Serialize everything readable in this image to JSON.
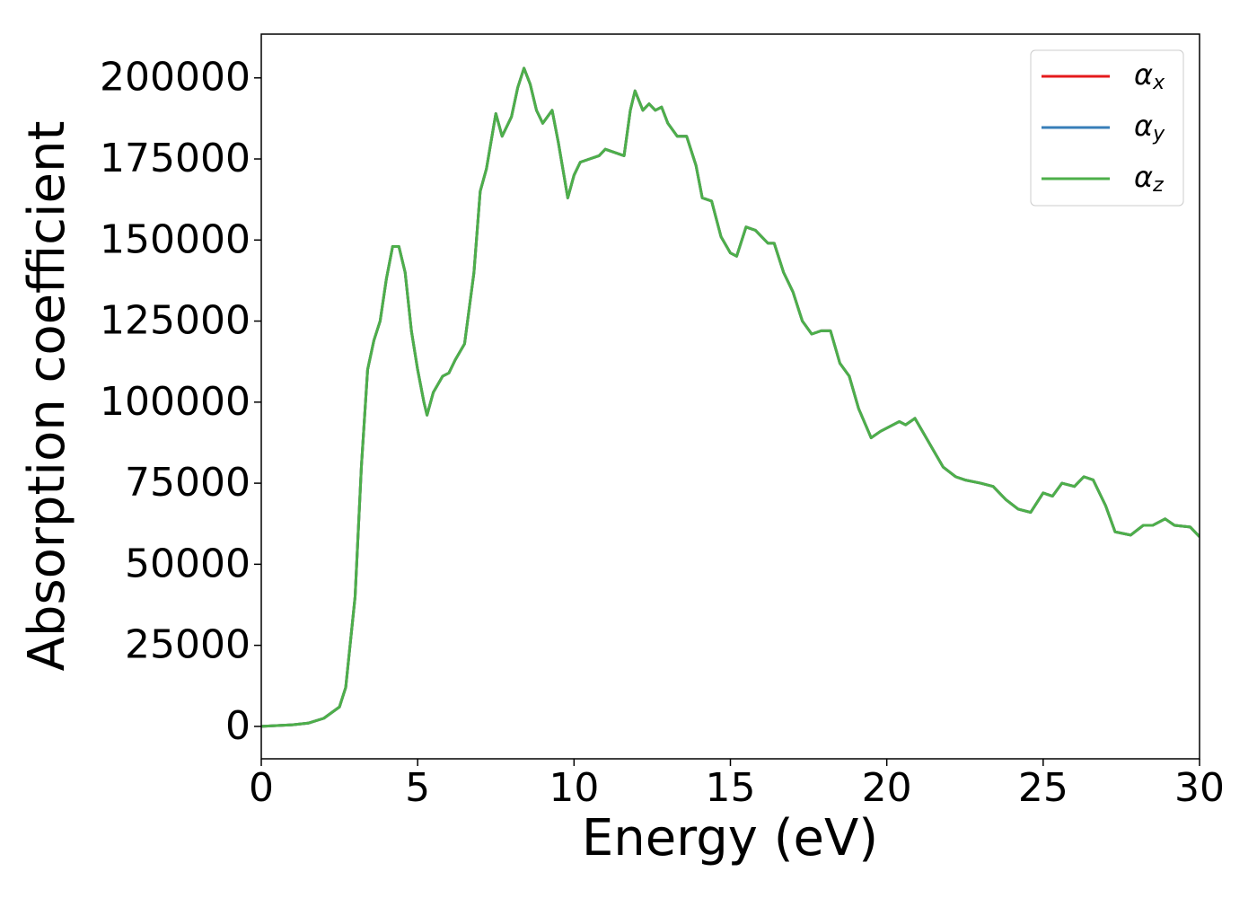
{
  "chart_data": {
    "type": "line",
    "xlabel": "Energy (eV)",
    "ylabel": "Absorption coefficient",
    "x": [
      0,
      1,
      1.5,
      2,
      2.5,
      2.7,
      3.0,
      3.2,
      3.4,
      3.6,
      3.8,
      4.0,
      4.2,
      4.4,
      4.6,
      4.8,
      5.0,
      5.2,
      5.3,
      5.5,
      5.8,
      6.0,
      6.2,
      6.5,
      6.8,
      7.0,
      7.2,
      7.5,
      7.7,
      8.0,
      8.2,
      8.4,
      8.6,
      8.8,
      9.0,
      9.3,
      9.5,
      9.8,
      10.0,
      10.2,
      10.5,
      10.8,
      11.0,
      11.3,
      11.6,
      11.8,
      11.95,
      12.2,
      12.4,
      12.6,
      12.8,
      13.0,
      13.3,
      13.6,
      13.9,
      14.1,
      14.4,
      14.7,
      15.0,
      15.2,
      15.5,
      15.8,
      16.0,
      16.2,
      16.4,
      16.7,
      17.0,
      17.3,
      17.6,
      17.9,
      18.2,
      18.5,
      18.8,
      19.1,
      19.5,
      19.8,
      20.0,
      20.4,
      20.6,
      20.9,
      21.2,
      21.5,
      21.8,
      22.2,
      22.5,
      23.0,
      23.4,
      23.8,
      24.2,
      24.6,
      25.0,
      25.3,
      25.6,
      26.0,
      26.3,
      26.6,
      27.0,
      27.3,
      27.8,
      28.2,
      28.5,
      28.9,
      29.2,
      29.7,
      30.0
    ],
    "series": [
      {
        "name": "αx",
        "color": "#e41a1c",
        "values": [
          0,
          500,
          1000,
          2500,
          6000,
          12000,
          40000,
          80000,
          110000,
          119000,
          125000,
          138000,
          148000,
          148000,
          140000,
          122000,
          110000,
          100000,
          96000,
          103000,
          108000,
          109000,
          113000,
          118000,
          140000,
          165000,
          172000,
          189000,
          182000,
          188000,
          197000,
          203000,
          198000,
          190000,
          186000,
          190000,
          180000,
          163000,
          170000,
          174000,
          175000,
          176000,
          178000,
          177000,
          176000,
          190000,
          196000,
          190000,
          192000,
          190000,
          191000,
          186000,
          182000,
          182000,
          173000,
          163000,
          162000,
          151000,
          146000,
          145000,
          154000,
          153000,
          151000,
          149000,
          149000,
          140000,
          134000,
          125000,
          121000,
          122000,
          122000,
          112000,
          108000,
          98000,
          89000,
          91000,
          92000,
          94000,
          93000,
          95000,
          90000,
          85000,
          80000,
          77000,
          76000,
          75000,
          74000,
          70000,
          67000,
          66000,
          72000,
          71000,
          75000,
          74000,
          77000,
          76000,
          68000,
          60000,
          59000,
          62000,
          62000,
          64000,
          62000,
          61500,
          58500
        ]
      },
      {
        "name": "αy",
        "color": "#377eb8",
        "values": [
          0,
          500,
          1000,
          2500,
          6000,
          12000,
          40000,
          80000,
          110000,
          119000,
          125000,
          138000,
          148000,
          148000,
          140000,
          122000,
          110000,
          100000,
          96000,
          103000,
          108000,
          109000,
          113000,
          118000,
          140000,
          165000,
          172000,
          189000,
          182000,
          188000,
          197000,
          203000,
          198000,
          190000,
          186000,
          190000,
          180000,
          163000,
          170000,
          174000,
          175000,
          176000,
          178000,
          177000,
          176000,
          190000,
          196000,
          190000,
          192000,
          190000,
          191000,
          186000,
          182000,
          182000,
          173000,
          163000,
          162000,
          151000,
          146000,
          145000,
          154000,
          153000,
          151000,
          149000,
          149000,
          140000,
          134000,
          125000,
          121000,
          122000,
          122000,
          112000,
          108000,
          98000,
          89000,
          91000,
          92000,
          94000,
          93000,
          95000,
          90000,
          85000,
          80000,
          77000,
          76000,
          75000,
          74000,
          70000,
          67000,
          66000,
          72000,
          71000,
          75000,
          74000,
          77000,
          76000,
          68000,
          60000,
          59000,
          62000,
          62000,
          64000,
          62000,
          61500,
          58500
        ]
      },
      {
        "name": "αz",
        "color": "#4daf4a",
        "values": [
          0,
          500,
          1000,
          2500,
          6000,
          12000,
          40000,
          80000,
          110000,
          119000,
          125000,
          138000,
          148000,
          148000,
          140000,
          122000,
          110000,
          100000,
          96000,
          103000,
          108000,
          109000,
          113000,
          118000,
          140000,
          165000,
          172000,
          189000,
          182000,
          188000,
          197000,
          203000,
          198000,
          190000,
          186000,
          190000,
          180000,
          163000,
          170000,
          174000,
          175000,
          176000,
          178000,
          177000,
          176000,
          190000,
          196000,
          190000,
          192000,
          190000,
          191000,
          186000,
          182000,
          182000,
          173000,
          163000,
          162000,
          151000,
          146000,
          145000,
          154000,
          153000,
          151000,
          149000,
          149000,
          140000,
          134000,
          125000,
          121000,
          122000,
          122000,
          112000,
          108000,
          98000,
          89000,
          91000,
          92000,
          94000,
          93000,
          95000,
          90000,
          85000,
          80000,
          77000,
          76000,
          75000,
          74000,
          70000,
          67000,
          66000,
          72000,
          71000,
          75000,
          74000,
          77000,
          76000,
          68000,
          60000,
          59000,
          62000,
          62000,
          64000,
          62000,
          61500,
          58500
        ]
      }
    ],
    "xlim": [
      0,
      30
    ],
    "xticks": [
      0,
      5,
      10,
      15,
      20,
      25,
      30
    ],
    "ylim": [
      -10000,
      213500
    ],
    "yticks": [
      0,
      25000,
      50000,
      75000,
      100000,
      125000,
      150000,
      175000,
      200000
    ],
    "grid": false,
    "legend": "upper right"
  }
}
